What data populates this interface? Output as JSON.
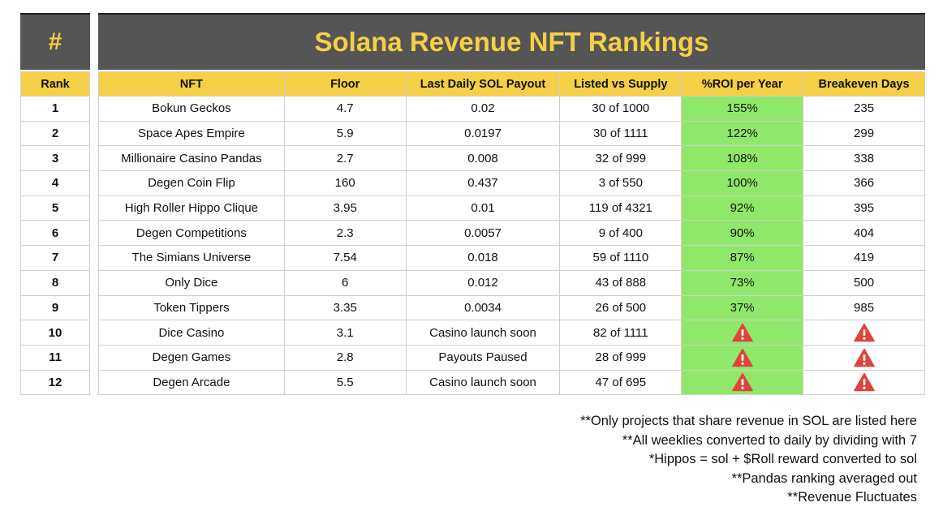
{
  "header": {
    "hash_label": "#",
    "title": "Solana Revenue NFT Rankings"
  },
  "table": {
    "rank_header": "Rank",
    "columns": [
      "NFT",
      "Floor",
      "Last Daily SOL Payout",
      "Listed vs Supply",
      "%ROI per Year",
      "Breakeven Days"
    ],
    "rows": [
      {
        "rank": "1",
        "nft": "Bokun Geckos",
        "floor": "4.7",
        "payout": "0.02",
        "listed": "30 of 1000",
        "roi": "155%",
        "breakeven": "235"
      },
      {
        "rank": "2",
        "nft": "Space Apes Empire",
        "floor": "5.9",
        "payout": "0.0197",
        "listed": "30 of 1111",
        "roi": "122%",
        "breakeven": "299"
      },
      {
        "rank": "3",
        "nft": "Millionaire Casino Pandas",
        "floor": "2.7",
        "payout": "0.008",
        "listed": "32 of 999",
        "roi": "108%",
        "breakeven": "338"
      },
      {
        "rank": "4",
        "nft": "Degen Coin Flip",
        "floor": "160",
        "payout": "0.437",
        "listed": "3 of 550",
        "roi": "100%",
        "breakeven": "366"
      },
      {
        "rank": "5",
        "nft": "High Roller Hippo Clique",
        "floor": "3.95",
        "payout": "0.01",
        "listed": "119 of 4321",
        "roi": "92%",
        "breakeven": "395"
      },
      {
        "rank": "6",
        "nft": "Degen Competitions",
        "floor": "2.3",
        "payout": "0.0057",
        "listed": "9 of 400",
        "roi": "90%",
        "breakeven": "404"
      },
      {
        "rank": "7",
        "nft": "The Simians Universe",
        "floor": "7.54",
        "payout": "0.018",
        "listed": "59 of 1110",
        "roi": "87%",
        "breakeven": "419"
      },
      {
        "rank": "8",
        "nft": "Only Dice",
        "floor": "6",
        "payout": "0.012",
        "listed": "43 of 888",
        "roi": "73%",
        "breakeven": "500"
      },
      {
        "rank": "9",
        "nft": "Token Tippers",
        "floor": "3.35",
        "payout": "0.0034",
        "listed": "26 of 500",
        "roi": "37%",
        "breakeven": "985"
      },
      {
        "rank": "10",
        "nft": "Dice Casino",
        "floor": "3.1",
        "payout": "Casino launch soon",
        "listed": "82 of 1111",
        "roi": null,
        "breakeven": null
      },
      {
        "rank": "11",
        "nft": "Degen Games",
        "floor": "2.8",
        "payout": "Payouts Paused",
        "listed": "28 of  999",
        "roi": null,
        "breakeven": null
      },
      {
        "rank": "12",
        "nft": "Degen Arcade",
        "floor": "5.5",
        "payout": "Casino launch soon",
        "listed": "47 of 695",
        "roi": null,
        "breakeven": null
      }
    ]
  },
  "icons": {
    "missing_value": "warning-icon"
  },
  "colors": {
    "header_bg": "#555555",
    "accent_yellow": "#f5cf45",
    "roi_green": "#90e86a",
    "warning_red": "#e0433a"
  },
  "notes": [
    "**Only projects that share revenue in SOL are listed here",
    "**All weeklies converted to daily by dividing with 7",
    "*Hippos = sol + $Roll reward converted to sol",
    "**Pandas ranking averaged out",
    "**Revenue Fluctuates"
  ]
}
